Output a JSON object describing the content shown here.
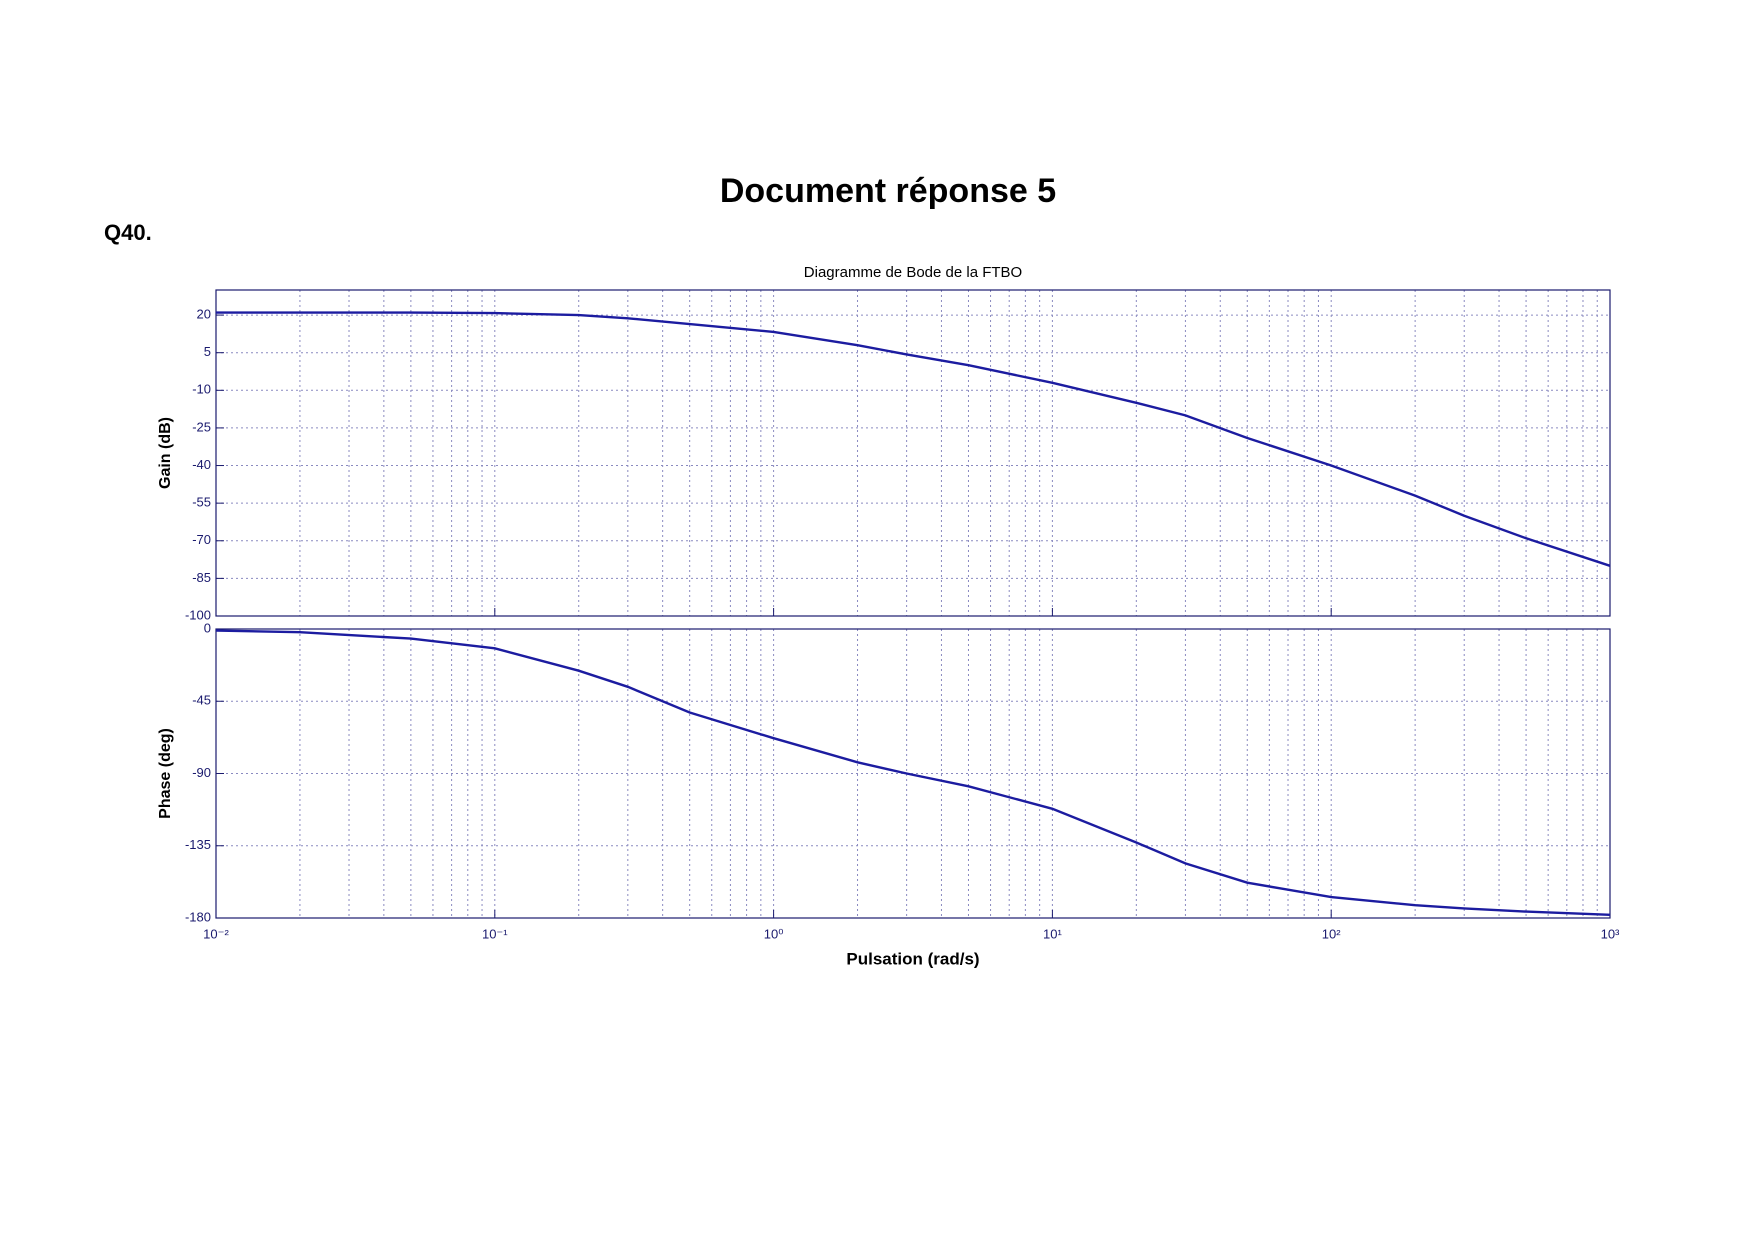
{
  "header": {
    "title": "Document réponse 5",
    "question": "Q40."
  },
  "chart_data": [
    {
      "type": "line",
      "title": "Diagramme de Bode de la FTBO",
      "y_label": "Gain (dB)",
      "log_x": true,
      "grid": true,
      "xlim": [
        0.01,
        1000
      ],
      "ylim": [
        -100,
        30
      ],
      "yticks": [
        20,
        5,
        -10,
        -25,
        -40,
        -55,
        -70,
        -85,
        -100
      ],
      "x": [
        0.01,
        0.02,
        0.05,
        0.1,
        0.2,
        0.3,
        0.5,
        1,
        2,
        3,
        5,
        10,
        20,
        30,
        50,
        100,
        200,
        300,
        500,
        1000
      ],
      "series": [
        {
          "name": "Gain",
          "color": "#1c1ca0",
          "values": [
            21,
            21,
            21,
            20.8,
            20,
            18.7,
            16.4,
            13.3,
            8,
            4.3,
            0,
            -7,
            -15,
            -20,
            -29,
            -40,
            -52,
            -60,
            -69,
            -80
          ]
        }
      ]
    },
    {
      "type": "line",
      "y_label": "Phase (deg)",
      "x_label": "Pulsation  (rad/s)",
      "log_x": true,
      "grid": true,
      "xlim": [
        0.01,
        1000
      ],
      "ylim": [
        -180,
        0
      ],
      "yticks": [
        0,
        -45,
        -90,
        -135,
        -180
      ],
      "xticks": [
        {
          "value": 0.01,
          "label": "10⁻²"
        },
        {
          "value": 0.1,
          "label": "10⁻¹"
        },
        {
          "value": 1,
          "label": "10⁰"
        },
        {
          "value": 10,
          "label": "10¹"
        },
        {
          "value": 100,
          "label": "10²"
        },
        {
          "value": 1000,
          "label": "10³"
        }
      ],
      "x": [
        0.01,
        0.02,
        0.05,
        0.1,
        0.2,
        0.3,
        0.5,
        1,
        2,
        3,
        5,
        10,
        20,
        30,
        50,
        100,
        200,
        300,
        500,
        1000
      ],
      "series": [
        {
          "name": "Phase",
          "color": "#1c1ca0",
          "values": [
            -1,
            -2,
            -6,
            -12,
            -26,
            -36,
            -52,
            -68,
            -83,
            -90,
            -98,
            -112,
            -133,
            -146,
            -158,
            -167,
            -172,
            -174,
            -176,
            -178
          ]
        }
      ]
    }
  ]
}
